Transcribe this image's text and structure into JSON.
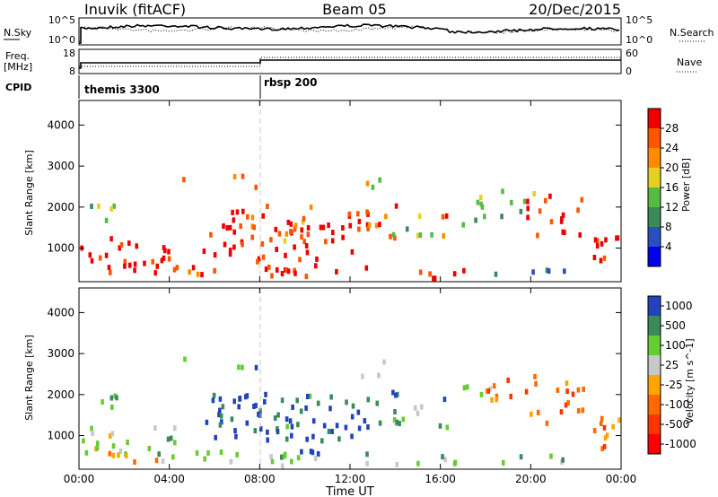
{
  "header": {
    "station": "Inuvik (fitACF)",
    "beam": "Beam 05",
    "date": "20/Dec/2015"
  },
  "panels": {
    "nsky_label": "N.Sky",
    "nsearch_label": "N.Search",
    "freq_label": "Freq.",
    "freq_unit": "[MHz]",
    "nave_label": "Nave",
    "cpid_label": "CPID",
    "nsky_ticks": [
      "10^5",
      "10^0"
    ],
    "nsearch_ticks": [
      "10^5",
      "10^0"
    ],
    "freq_ticks": [
      "18",
      "8"
    ],
    "nave_ticks": [
      "60",
      "0"
    ],
    "cpid_segments": [
      {
        "label": "themis 3300",
        "start_hour": 0
      },
      {
        "label": "rbsp 200",
        "start_hour": 8
      }
    ]
  },
  "colors": {
    "power_scale": [
      "#0000ee",
      "#2a4fbf",
      "#3a8a5a",
      "#55bb44",
      "#e6d020",
      "#ff8c00",
      "#ff5500",
      "#ee0000"
    ],
    "velocity_scale": [
      "#ff0000",
      "#ff3300",
      "#ff6a00",
      "#ffa500",
      "#c8c8c8",
      "#66cc33",
      "#3a8a5a",
      "#2244bb"
    ]
  },
  "chart_data": [
    {
      "type": "heatmap",
      "name": "power",
      "xlabel": "",
      "ylabel": "Slant Range [km]",
      "xlim": [
        0,
        24
      ],
      "ylim": [
        180,
        4600
      ],
      "yticks": [
        "4000",
        "3000",
        "2000",
        "1000"
      ],
      "colorbar_label": "Power [dB]",
      "colorbar_ticks": [
        "28",
        "24",
        "20",
        "16",
        "12",
        "8",
        "4"
      ]
    },
    {
      "type": "heatmap",
      "name": "velocity",
      "xlabel": "Time UT",
      "ylabel": "Slant Range [km]",
      "xlim": [
        0,
        24
      ],
      "ylim": [
        180,
        4600
      ],
      "xticks": [
        "00:00",
        "04:00",
        "08:00",
        "12:00",
        "16:00",
        "20:00",
        "00:00"
      ],
      "yticks": [
        "4000",
        "3000",
        "2000",
        "1000"
      ],
      "colorbar_label": "Velocity [m s^-1]",
      "colorbar_ticks": [
        "1000",
        "500",
        "100",
        "25",
        "-25",
        "-100",
        "-500",
        "-1000"
      ]
    }
  ]
}
